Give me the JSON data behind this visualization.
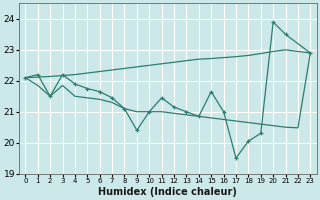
{
  "x": [
    0,
    1,
    2,
    3,
    4,
    5,
    6,
    7,
    8,
    9,
    10,
    11,
    12,
    13,
    14,
    15,
    16,
    17,
    18,
    19,
    20,
    21,
    22,
    23
  ],
  "jagged": [
    22.1,
    22.2,
    21.5,
    22.2,
    21.9,
    21.75,
    21.65,
    21.45,
    21.1,
    20.4,
    21.0,
    21.45,
    21.15,
    21.0,
    20.85,
    21.65,
    21.0,
    19.5,
    20.05,
    20.3,
    23.9,
    23.5,
    null,
    22.9
  ],
  "line_top": [
    22.1,
    22.12,
    22.14,
    22.17,
    22.2,
    22.25,
    22.3,
    22.35,
    22.4,
    22.45,
    22.5,
    22.55,
    22.6,
    22.65,
    22.7,
    22.72,
    22.75,
    22.78,
    22.82,
    22.88,
    22.95,
    23.0,
    22.95,
    22.9
  ],
  "line_bot": [
    22.1,
    21.85,
    21.5,
    21.85,
    21.5,
    21.45,
    21.4,
    21.3,
    21.1,
    21.0,
    21.0,
    21.0,
    20.95,
    20.9,
    20.85,
    20.8,
    20.75,
    20.7,
    20.65,
    20.6,
    20.55,
    20.5,
    20.48,
    22.9
  ],
  "color": "#2d7d6e",
  "bg_color": "#cce8e8",
  "grid_color": "#ffffff",
  "xlabel": "Humidex (Indice chaleur)",
  "ylim": [
    19,
    24.5
  ],
  "yticks": [
    19,
    20,
    21,
    22,
    23,
    24
  ],
  "xticks": [
    0,
    1,
    2,
    3,
    4,
    5,
    6,
    7,
    8,
    9,
    10,
    11,
    12,
    13,
    14,
    15,
    16,
    17,
    18,
    19,
    20,
    21,
    22,
    23
  ]
}
